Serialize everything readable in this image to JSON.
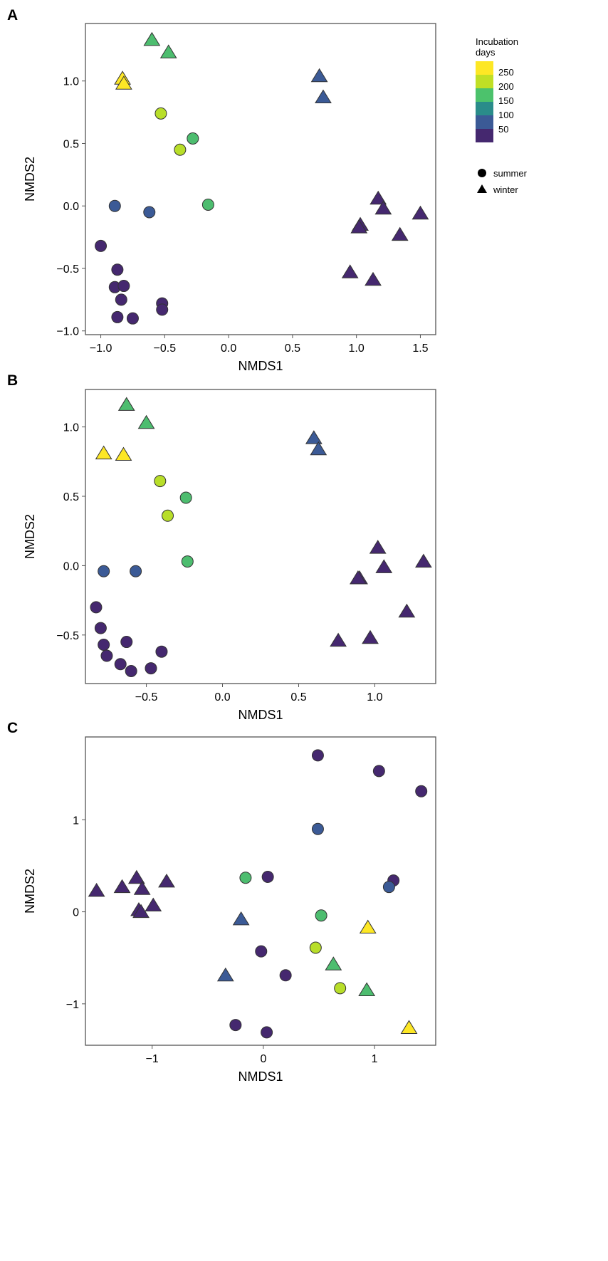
{
  "colors": {
    "250": "#fde725",
    "200": "#b8de29",
    "150": "#4dbd6f",
    "100": "#2a8a8a",
    "75": "#3b5a96",
    "0": "#45286f"
  },
  "legend": {
    "title_line1": "Incubation",
    "title_line2": "days",
    "ticks": [
      "250",
      "200",
      "150",
      "100",
      "50"
    ],
    "blocks": [
      "#fde725",
      "#c0df25",
      "#4cc26c",
      "#2a8c8a",
      "#3b5a96",
      "#45286f"
    ],
    "shapes": [
      {
        "shape": "circle",
        "label": "summer"
      },
      {
        "shape": "triangle",
        "label": "winter"
      }
    ]
  },
  "chart_data": [
    {
      "panel": "A",
      "type": "scatter",
      "xlabel": "NMDS1",
      "ylabel": "NMDS2",
      "xlim": [
        -1.12,
        1.62
      ],
      "ylim": [
        -1.03,
        1.46
      ],
      "xticks": [
        -1.0,
        -0.5,
        0.0,
        0.5,
        1.0,
        1.5
      ],
      "yticks": [
        -1.0,
        -0.5,
        0.0,
        0.5,
        1.0
      ],
      "tick_decimals": 1,
      "points": [
        {
          "x": -1.0,
          "y": -0.32,
          "s": "summer",
          "d": "0"
        },
        {
          "x": -0.87,
          "y": -0.51,
          "s": "summer",
          "d": "0"
        },
        {
          "x": -0.89,
          "y": -0.65,
          "s": "summer",
          "d": "0"
        },
        {
          "x": -0.82,
          "y": -0.64,
          "s": "summer",
          "d": "0"
        },
        {
          "x": -0.84,
          "y": -0.75,
          "s": "summer",
          "d": "0"
        },
        {
          "x": -0.87,
          "y": -0.89,
          "s": "summer",
          "d": "0"
        },
        {
          "x": -0.75,
          "y": -0.9,
          "s": "summer",
          "d": "0"
        },
        {
          "x": -0.52,
          "y": -0.78,
          "s": "summer",
          "d": "0"
        },
        {
          "x": -0.52,
          "y": -0.83,
          "s": "summer",
          "d": "0"
        },
        {
          "x": -0.89,
          "y": 0.0,
          "s": "summer",
          "d": "75"
        },
        {
          "x": -0.62,
          "y": -0.05,
          "s": "summer",
          "d": "75"
        },
        {
          "x": -0.53,
          "y": 0.74,
          "s": "summer",
          "d": "200"
        },
        {
          "x": -0.38,
          "y": 0.45,
          "s": "summer",
          "d": "200"
        },
        {
          "x": -0.28,
          "y": 0.54,
          "s": "summer",
          "d": "150"
        },
        {
          "x": -0.16,
          "y": 0.01,
          "s": "summer",
          "d": "150"
        },
        {
          "x": -0.83,
          "y": 1.02,
          "s": "winter",
          "d": "250"
        },
        {
          "x": -0.82,
          "y": 0.98,
          "s": "winter",
          "d": "250"
        },
        {
          "x": -0.6,
          "y": 1.33,
          "s": "winter",
          "d": "150"
        },
        {
          "x": -0.47,
          "y": 1.23,
          "s": "winter",
          "d": "150"
        },
        {
          "x": 0.71,
          "y": 1.04,
          "s": "winter",
          "d": "75"
        },
        {
          "x": 0.74,
          "y": 0.87,
          "s": "winter",
          "d": "75"
        },
        {
          "x": 1.17,
          "y": 0.06,
          "s": "winter",
          "d": "0"
        },
        {
          "x": 1.21,
          "y": -0.02,
          "s": "winter",
          "d": "0"
        },
        {
          "x": 1.03,
          "y": -0.15,
          "s": "winter",
          "d": "0"
        },
        {
          "x": 1.02,
          "y": -0.17,
          "s": "winter",
          "d": "0"
        },
        {
          "x": 1.5,
          "y": -0.06,
          "s": "winter",
          "d": "0"
        },
        {
          "x": 1.34,
          "y": -0.23,
          "s": "winter",
          "d": "0"
        },
        {
          "x": 0.95,
          "y": -0.53,
          "s": "winter",
          "d": "0"
        },
        {
          "x": 1.13,
          "y": -0.59,
          "s": "winter",
          "d": "0"
        }
      ]
    },
    {
      "panel": "B",
      "type": "scatter",
      "xlabel": "NMDS1",
      "ylabel": "NMDS2",
      "xlim": [
        -0.9,
        1.4
      ],
      "ylim": [
        -0.85,
        1.27
      ],
      "xticks": [
        -0.5,
        0.0,
        0.5,
        1.0
      ],
      "yticks": [
        -0.5,
        0.0,
        0.5,
        1.0
      ],
      "tick_decimals": 1,
      "points": [
        {
          "x": -0.83,
          "y": -0.3,
          "s": "summer",
          "d": "0"
        },
        {
          "x": -0.8,
          "y": -0.45,
          "s": "summer",
          "d": "0"
        },
        {
          "x": -0.78,
          "y": -0.57,
          "s": "summer",
          "d": "0"
        },
        {
          "x": -0.76,
          "y": -0.65,
          "s": "summer",
          "d": "0"
        },
        {
          "x": -0.67,
          "y": -0.71,
          "s": "summer",
          "d": "0"
        },
        {
          "x": -0.63,
          "y": -0.55,
          "s": "summer",
          "d": "0"
        },
        {
          "x": -0.6,
          "y": -0.76,
          "s": "summer",
          "d": "0"
        },
        {
          "x": -0.47,
          "y": -0.74,
          "s": "summer",
          "d": "0"
        },
        {
          "x": -0.4,
          "y": -0.62,
          "s": "summer",
          "d": "0"
        },
        {
          "x": -0.78,
          "y": -0.04,
          "s": "summer",
          "d": "75"
        },
        {
          "x": -0.57,
          "y": -0.04,
          "s": "summer",
          "d": "75"
        },
        {
          "x": -0.41,
          "y": 0.61,
          "s": "summer",
          "d": "200"
        },
        {
          "x": -0.36,
          "y": 0.36,
          "s": "summer",
          "d": "200"
        },
        {
          "x": -0.24,
          "y": 0.49,
          "s": "summer",
          "d": "150"
        },
        {
          "x": -0.23,
          "y": 0.03,
          "s": "summer",
          "d": "150"
        },
        {
          "x": -0.63,
          "y": 1.16,
          "s": "winter",
          "d": "150"
        },
        {
          "x": -0.5,
          "y": 1.03,
          "s": "winter",
          "d": "150"
        },
        {
          "x": -0.78,
          "y": 0.81,
          "s": "winter",
          "d": "250"
        },
        {
          "x": -0.65,
          "y": 0.8,
          "s": "winter",
          "d": "250"
        },
        {
          "x": 0.6,
          "y": 0.92,
          "s": "winter",
          "d": "75"
        },
        {
          "x": 0.63,
          "y": 0.84,
          "s": "winter",
          "d": "75"
        },
        {
          "x": 1.02,
          "y": 0.13,
          "s": "winter",
          "d": "0"
        },
        {
          "x": 1.06,
          "y": -0.01,
          "s": "winter",
          "d": "0"
        },
        {
          "x": 0.9,
          "y": -0.09,
          "s": "winter",
          "d": "0"
        },
        {
          "x": 0.89,
          "y": -0.09,
          "s": "winter",
          "d": "0"
        },
        {
          "x": 1.32,
          "y": 0.03,
          "s": "winter",
          "d": "0"
        },
        {
          "x": 1.21,
          "y": -0.33,
          "s": "winter",
          "d": "0"
        },
        {
          "x": 0.76,
          "y": -0.54,
          "s": "winter",
          "d": "0"
        },
        {
          "x": 0.97,
          "y": -0.52,
          "s": "winter",
          "d": "0"
        }
      ]
    },
    {
      "panel": "C",
      "type": "scatter",
      "xlabel": "NMDS1",
      "ylabel": "NMDS2",
      "xlim": [
        -1.6,
        1.55
      ],
      "ylim": [
        -1.45,
        1.9
      ],
      "xticks": [
        -1,
        0,
        1
      ],
      "yticks": [
        -1,
        0,
        1
      ],
      "tick_decimals": 0,
      "points": [
        {
          "x": -1.5,
          "y": 0.23,
          "s": "winter",
          "d": "0"
        },
        {
          "x": -1.27,
          "y": 0.27,
          "s": "winter",
          "d": "0"
        },
        {
          "x": -1.14,
          "y": 0.37,
          "s": "winter",
          "d": "0"
        },
        {
          "x": -1.09,
          "y": 0.25,
          "s": "winter",
          "d": "0"
        },
        {
          "x": -0.87,
          "y": 0.33,
          "s": "winter",
          "d": "0"
        },
        {
          "x": -1.12,
          "y": 0.02,
          "s": "winter",
          "d": "0"
        },
        {
          "x": -1.1,
          "y": 0.0,
          "s": "winter",
          "d": "0"
        },
        {
          "x": -0.99,
          "y": 0.07,
          "s": "winter",
          "d": "0"
        },
        {
          "x": -0.2,
          "y": -0.08,
          "s": "winter",
          "d": "75"
        },
        {
          "x": -0.34,
          "y": -0.69,
          "s": "winter",
          "d": "75"
        },
        {
          "x": 0.63,
          "y": -0.57,
          "s": "winter",
          "d": "150"
        },
        {
          "x": 0.93,
          "y": -0.85,
          "s": "winter",
          "d": "150"
        },
        {
          "x": 0.94,
          "y": -0.17,
          "s": "winter",
          "d": "250"
        },
        {
          "x": 1.31,
          "y": -1.26,
          "s": "winter",
          "d": "250"
        },
        {
          "x": 0.49,
          "y": 1.7,
          "s": "summer",
          "d": "0"
        },
        {
          "x": 1.04,
          "y": 1.53,
          "s": "summer",
          "d": "0"
        },
        {
          "x": 1.42,
          "y": 1.31,
          "s": "summer",
          "d": "0"
        },
        {
          "x": 0.04,
          "y": 0.38,
          "s": "summer",
          "d": "0"
        },
        {
          "x": 1.17,
          "y": 0.34,
          "s": "summer",
          "d": "0"
        },
        {
          "x": -0.02,
          "y": -0.43,
          "s": "summer",
          "d": "0"
        },
        {
          "x": 0.2,
          "y": -0.69,
          "s": "summer",
          "d": "0"
        },
        {
          "x": -0.25,
          "y": -1.23,
          "s": "summer",
          "d": "0"
        },
        {
          "x": 0.03,
          "y": -1.31,
          "s": "summer",
          "d": "0"
        },
        {
          "x": 0.49,
          "y": 0.9,
          "s": "summer",
          "d": "75"
        },
        {
          "x": 1.13,
          "y": 0.27,
          "s": "summer",
          "d": "75"
        },
        {
          "x": -0.16,
          "y": 0.37,
          "s": "summer",
          "d": "150"
        },
        {
          "x": 0.52,
          "y": -0.04,
          "s": "summer",
          "d": "150"
        },
        {
          "x": 0.47,
          "y": -0.39,
          "s": "summer",
          "d": "200"
        },
        {
          "x": 0.69,
          "y": -0.83,
          "s": "summer",
          "d": "200"
        }
      ]
    }
  ]
}
